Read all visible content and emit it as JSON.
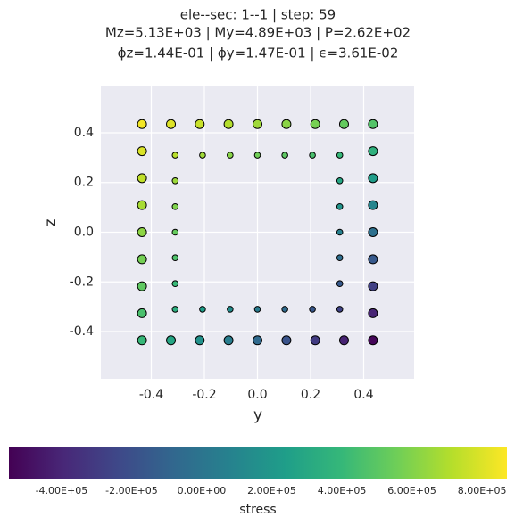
{
  "chart_data": {
    "type": "scatter",
    "title": "ele--sec: 1--1 | step: 59",
    "subtitle": "Mz=5.13E+03 | My=4.89E+03 | P=2.62E+02",
    "subtitle2": "ϕz=1.44E-01 | ϕy=1.47E-01 | ϵ=3.61E-02",
    "x_label": "y",
    "y_label": "z",
    "xlim": [
      -0.59,
      0.59
    ],
    "ylim": [
      -0.59,
      0.59
    ],
    "xticks": [
      -0.4,
      -0.2,
      {
        "value": 0,
        "label": "0.0"
      },
      0.2,
      0.4
    ],
    "yticks": [
      -0.4,
      -0.2,
      {
        "value": 0,
        "label": "0.0"
      },
      0.2,
      0.4
    ],
    "grid": true,
    "colormap": "viridis",
    "edge_color": "#000000",
    "series": [
      {
        "x": [
          -0.435,
          -0.326,
          -0.2175,
          -0.109,
          0,
          0.109,
          0.2175,
          0.326,
          0.435,
          -0.435,
          -0.326,
          -0.2175,
          -0.109,
          0,
          0.109,
          0.2175,
          0.326,
          0.435,
          -0.435,
          -0.435,
          -0.435,
          -0.435,
          -0.435,
          -0.435,
          -0.435,
          0.435,
          0.435,
          0.435,
          0.435,
          0.435,
          0.435,
          0.435
        ],
        "y": [
          0.435,
          0.435,
          0.435,
          0.435,
          0.435,
          0.435,
          0.435,
          0.435,
          0.435,
          -0.435,
          -0.435,
          -0.435,
          -0.435,
          -0.435,
          -0.435,
          -0.435,
          -0.435,
          -0.435,
          0.326,
          0.2175,
          0.109,
          0,
          -0.109,
          -0.2175,
          -0.326,
          0.326,
          0.2175,
          0.109,
          0,
          -0.109,
          -0.2175,
          -0.326
        ],
        "c": [
          850000,
          804000,
          758000,
          711000,
          665000,
          619000,
          573000,
          526000,
          480000,
          400000,
          284000,
          168000,
          51000,
          -65000,
          -181000,
          -298000,
          -414000,
          -530000,
          794000,
          738000,
          681000,
          625000,
          569000,
          513000,
          456000,
          354000,
          228000,
          101000,
          -25000,
          -151000,
          -278000,
          -404000
        ]
      },
      {
        "x": [
          -0.31,
          -0.207,
          -0.103,
          0,
          0.103,
          0.207,
          0.31,
          -0.31,
          -0.207,
          -0.103,
          0,
          0.103,
          0.207,
          0.31,
          -0.31,
          -0.31,
          -0.31,
          -0.31,
          -0.31,
          0.31,
          0.31,
          0.31,
          0.31,
          0.31
        ],
        "y": [
          0.31,
          0.31,
          0.31,
          0.31,
          0.31,
          0.31,
          0.31,
          -0.31,
          -0.31,
          -0.31,
          -0.31,
          -0.31,
          -0.31,
          -0.31,
          0.207,
          0.103,
          0,
          -0.103,
          -0.207,
          0.207,
          0.103,
          0,
          -0.103,
          -0.207
        ],
        "c": [
          720000,
          667000,
          613000,
          560000,
          507000,
          453000,
          399000,
          342000,
          242000,
          140000,
          40000,
          -60000,
          -162000,
          -262000,
          658000,
          594000,
          531000,
          469000,
          405000,
          290000,
          178000,
          69000,
          -41000,
          -153000
        ]
      }
    ],
    "colorbar": {
      "label": "stress",
      "clim": [
        -550000,
        871000
      ],
      "ticks": [
        {
          "value": -400000,
          "label": "-4.00E+05"
        },
        {
          "value": -200000,
          "label": "-2.00E+05"
        },
        {
          "value": 0,
          "label": "0.00E+00"
        },
        {
          "value": 200000,
          "label": "2.00E+05"
        },
        {
          "value": 400000,
          "label": "4.00E+05"
        },
        {
          "value": 600000,
          "label": "6.00E+05"
        },
        {
          "value": 800000,
          "label": "8.00E+05"
        }
      ]
    }
  }
}
